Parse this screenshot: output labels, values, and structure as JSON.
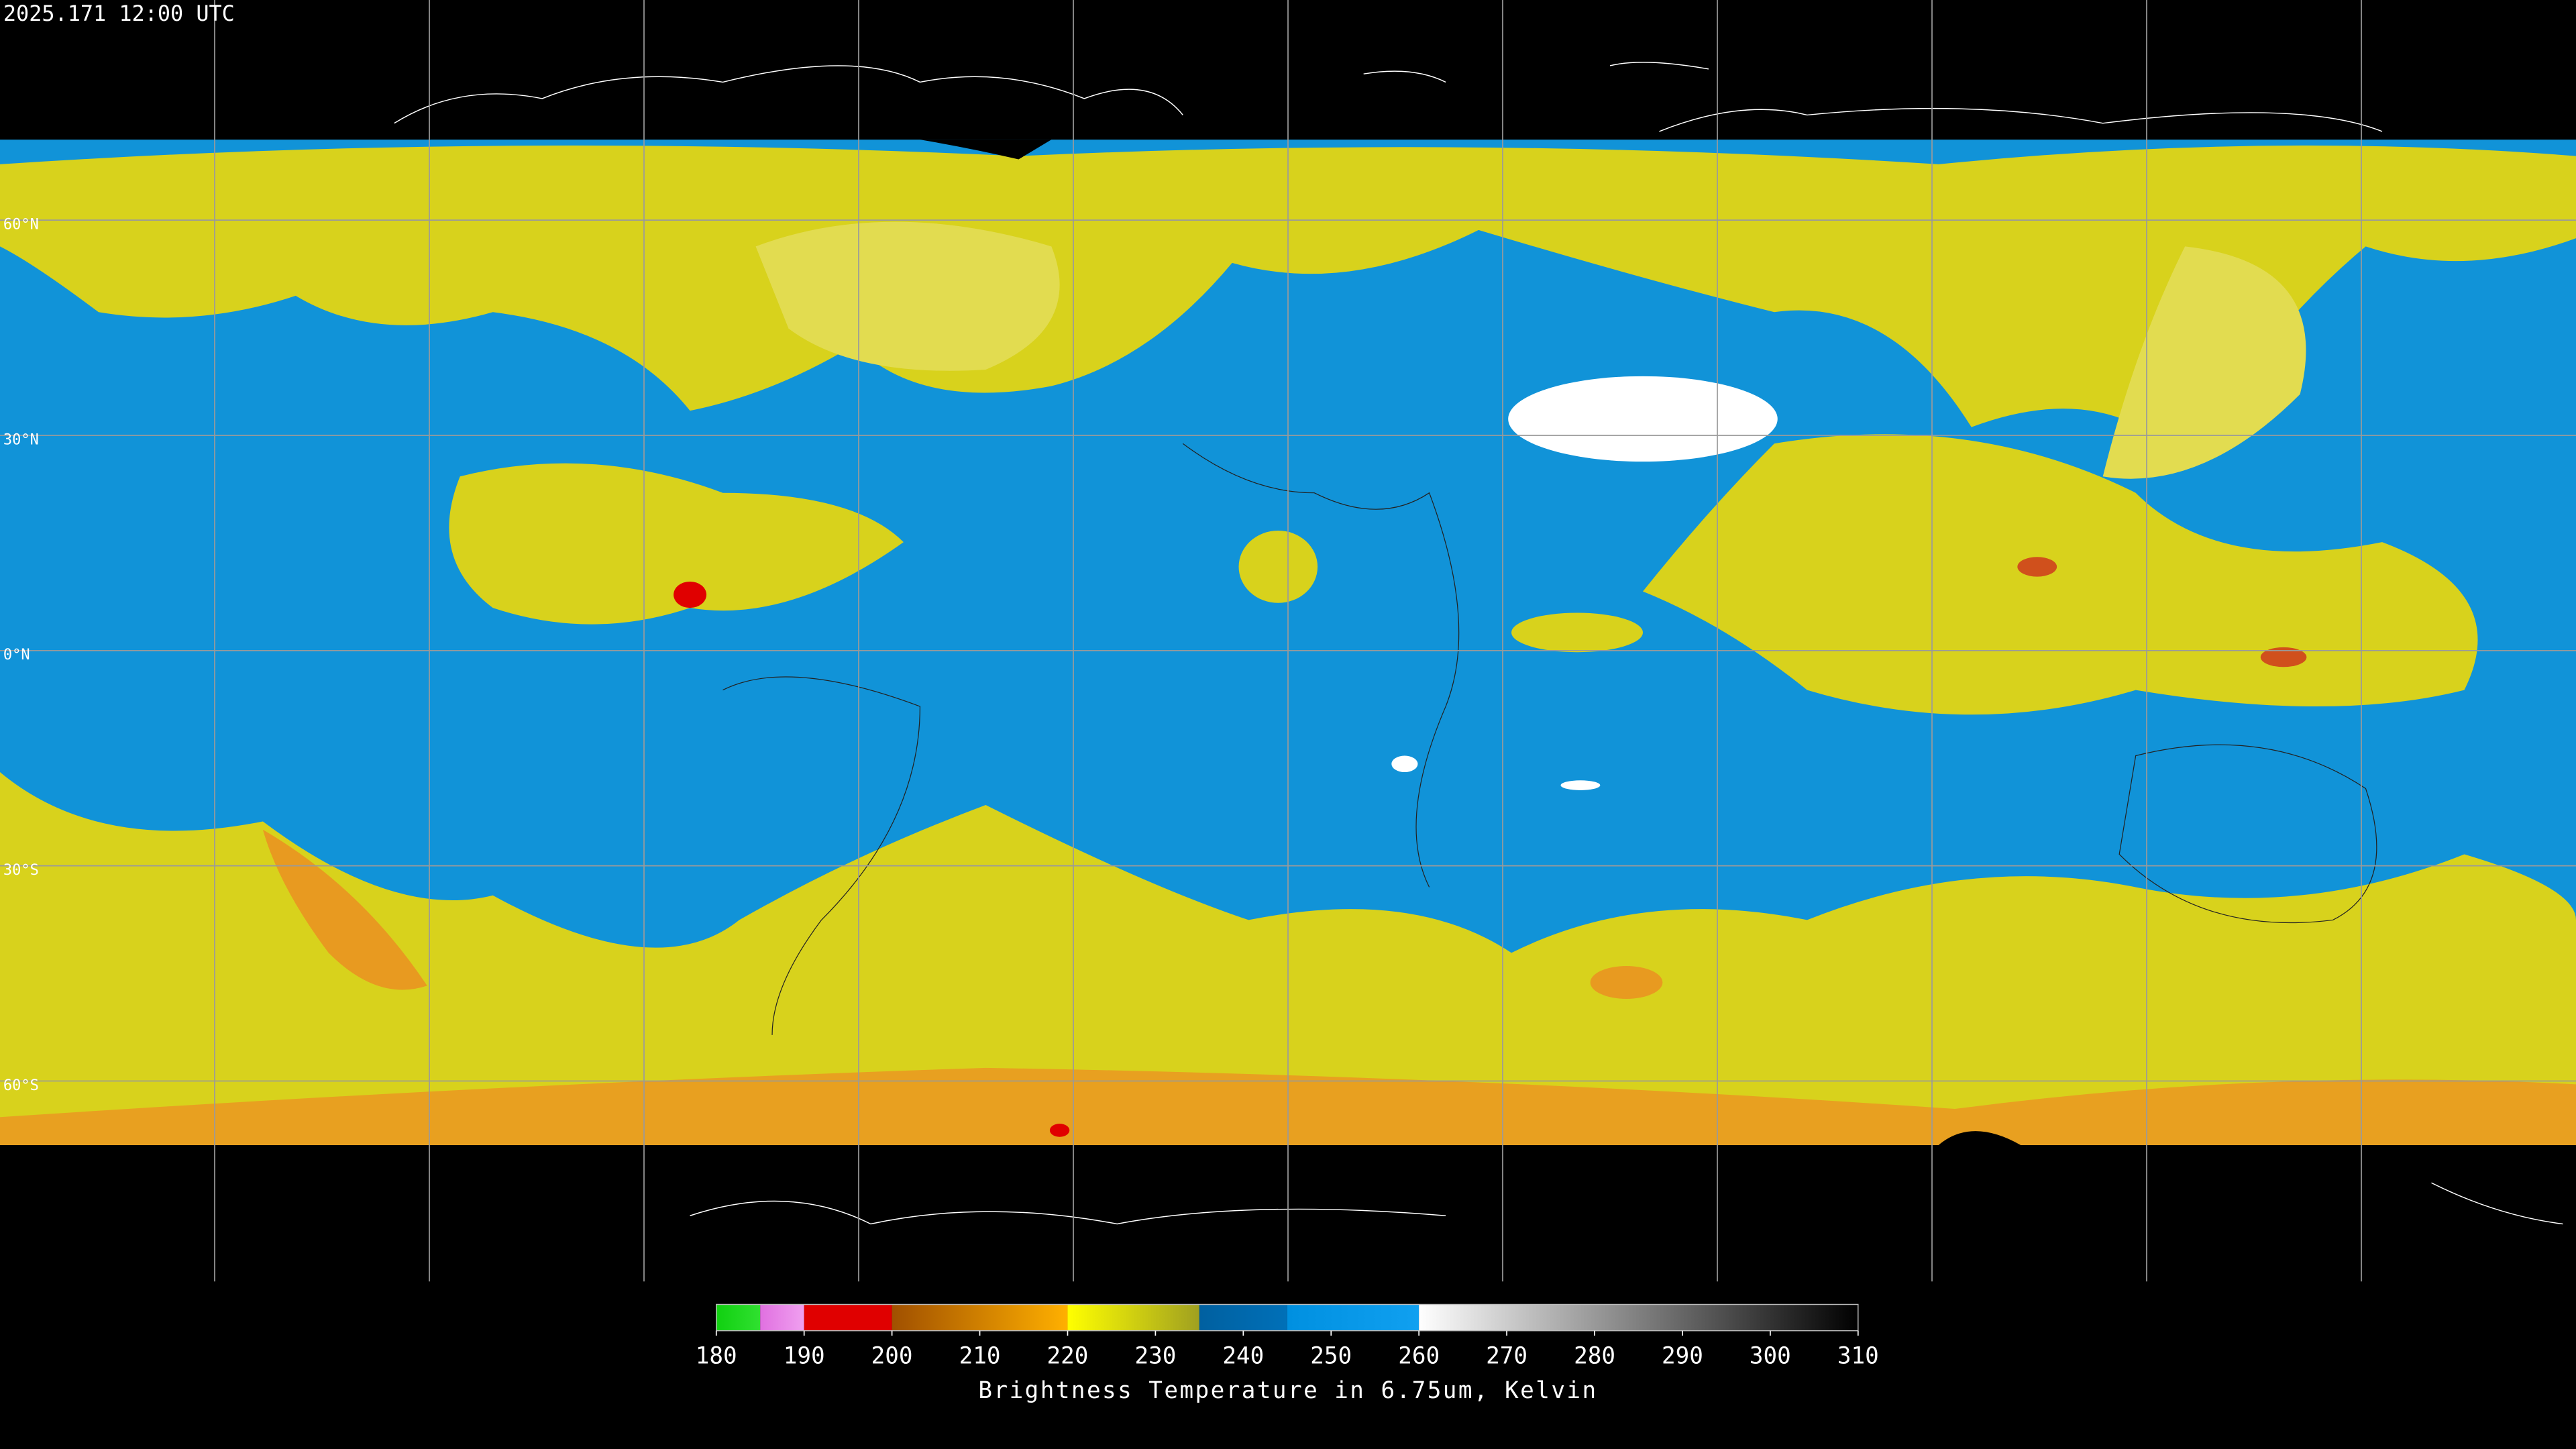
{
  "header": {
    "timestamp": "2025.171 12:00 UTC"
  },
  "map": {
    "latitude_labels": [
      "60°N",
      "30°N",
      "0°N",
      "30°S",
      "60°S"
    ]
  },
  "colorbar": {
    "range": [
      180,
      310
    ],
    "ticks": [
      180,
      190,
      200,
      210,
      220,
      230,
      240,
      250,
      260,
      270,
      280,
      290,
      300,
      310
    ],
    "segments": [
      {
        "from": 180,
        "to": 185,
        "colors": [
          "#10d010",
          "#30e030"
        ]
      },
      {
        "from": 185,
        "to": 190,
        "colors": [
          "#e070e0",
          "#f0a0f0"
        ]
      },
      {
        "from": 190,
        "to": 200,
        "colors": [
          "#e00000",
          "#e00000"
        ]
      },
      {
        "from": 200,
        "to": 220,
        "colors": [
          "#a05000",
          "#ffb000"
        ]
      },
      {
        "from": 220,
        "to": 235,
        "colors": [
          "#ffff00",
          "#a0a020"
        ]
      },
      {
        "from": 235,
        "to": 245,
        "colors": [
          "#0060a0",
          "#0070b8"
        ]
      },
      {
        "from": 245,
        "to": 260,
        "colors": [
          "#0090e0",
          "#10a0f0"
        ]
      },
      {
        "from": 260,
        "to": 310,
        "colors": [
          "#ffffff",
          "#000000"
        ]
      }
    ],
    "title": "Brightness Temperature in 6.75um, Kelvin"
  }
}
